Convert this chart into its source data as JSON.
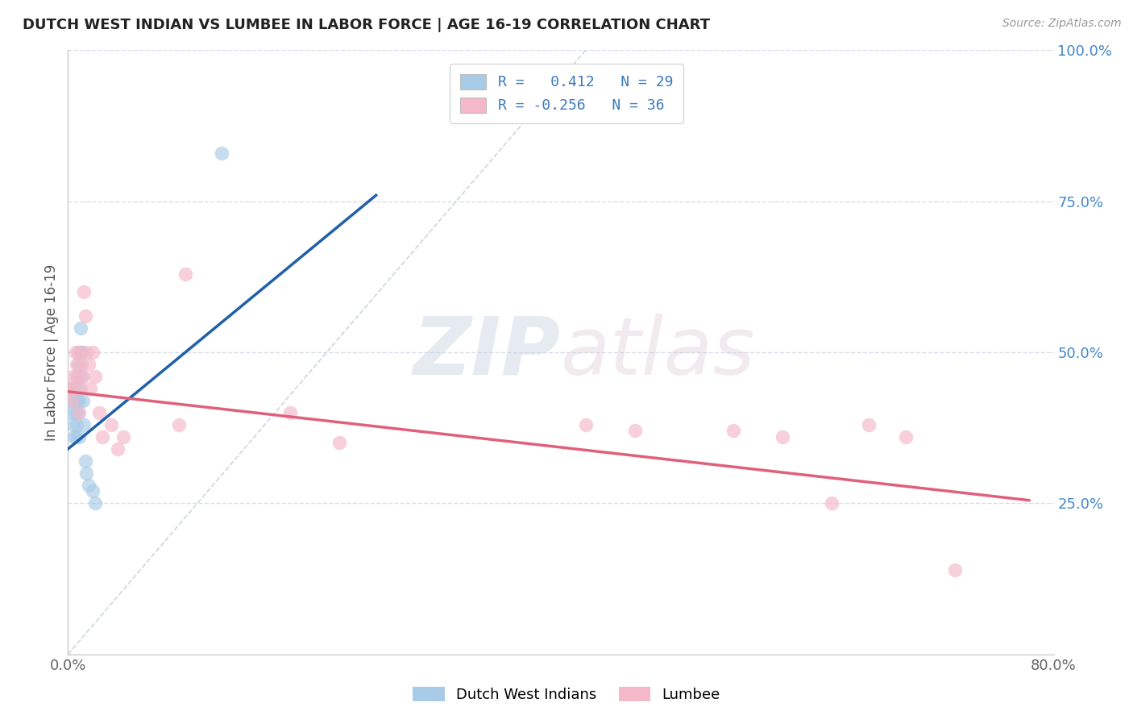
{
  "title": "DUTCH WEST INDIAN VS LUMBEE IN LABOR FORCE | AGE 16-19 CORRELATION CHART",
  "source": "Source: ZipAtlas.com",
  "ylabel": "In Labor Force | Age 16-19",
  "xlim": [
    0.0,
    0.8
  ],
  "ylim": [
    0.0,
    1.0
  ],
  "xticks": [
    0.0,
    0.1,
    0.2,
    0.3,
    0.4,
    0.5,
    0.6,
    0.7,
    0.8
  ],
  "xticklabels": [
    "0.0%",
    "",
    "",
    "",
    "",
    "",
    "",
    "",
    "80.0%"
  ],
  "yticks_right": [
    0.25,
    0.5,
    0.75,
    1.0
  ],
  "ytick_labels_right": [
    "25.0%",
    "50.0%",
    "75.0%",
    "100.0%"
  ],
  "watermark_zip": "ZIP",
  "watermark_atlas": "atlas",
  "blue_color": "#a8cce8",
  "pink_color": "#f5b8c8",
  "blue_line_color": "#2060a8",
  "pink_line_color": "#e0607a",
  "grid_color": "#d8dde8",
  "ref_line_color": "#c0ccd8",
  "background_color": "#ffffff",
  "blue_scatter_x": [
    0.002,
    0.003,
    0.003,
    0.004,
    0.005,
    0.005,
    0.006,
    0.006,
    0.006,
    0.007,
    0.007,
    0.007,
    0.008,
    0.008,
    0.008,
    0.009,
    0.009,
    0.01,
    0.01,
    0.011,
    0.011,
    0.012,
    0.013,
    0.014,
    0.015,
    0.017,
    0.02,
    0.022,
    0.125
  ],
  "blue_scatter_y": [
    0.42,
    0.4,
    0.44,
    0.38,
    0.36,
    0.42,
    0.36,
    0.4,
    0.44,
    0.38,
    0.42,
    0.46,
    0.4,
    0.44,
    0.48,
    0.36,
    0.42,
    0.5,
    0.54,
    0.46,
    0.5,
    0.42,
    0.38,
    0.32,
    0.3,
    0.28,
    0.27,
    0.25,
    0.83
  ],
  "pink_scatter_x": [
    0.002,
    0.003,
    0.004,
    0.005,
    0.006,
    0.007,
    0.008,
    0.008,
    0.009,
    0.01,
    0.011,
    0.012,
    0.013,
    0.014,
    0.015,
    0.017,
    0.018,
    0.02,
    0.022,
    0.025,
    0.028,
    0.035,
    0.04,
    0.045,
    0.09,
    0.095,
    0.18,
    0.22,
    0.42,
    0.46,
    0.54,
    0.58,
    0.62,
    0.65,
    0.68,
    0.72
  ],
  "pink_scatter_y": [
    0.44,
    0.42,
    0.46,
    0.44,
    0.5,
    0.48,
    0.46,
    0.5,
    0.4,
    0.44,
    0.48,
    0.46,
    0.6,
    0.56,
    0.5,
    0.48,
    0.44,
    0.5,
    0.46,
    0.4,
    0.36,
    0.38,
    0.34,
    0.36,
    0.38,
    0.63,
    0.4,
    0.35,
    0.38,
    0.37,
    0.37,
    0.36,
    0.25,
    0.38,
    0.36,
    0.14
  ],
  "blue_trend_x": [
    0.0,
    0.25
  ],
  "blue_trend_y": [
    0.34,
    0.76
  ],
  "pink_trend_x": [
    0.0,
    0.78
  ],
  "pink_trend_y": [
    0.435,
    0.255
  ],
  "ref_line_x": [
    0.0,
    0.42
  ],
  "ref_line_y": [
    0.0,
    1.0
  ]
}
